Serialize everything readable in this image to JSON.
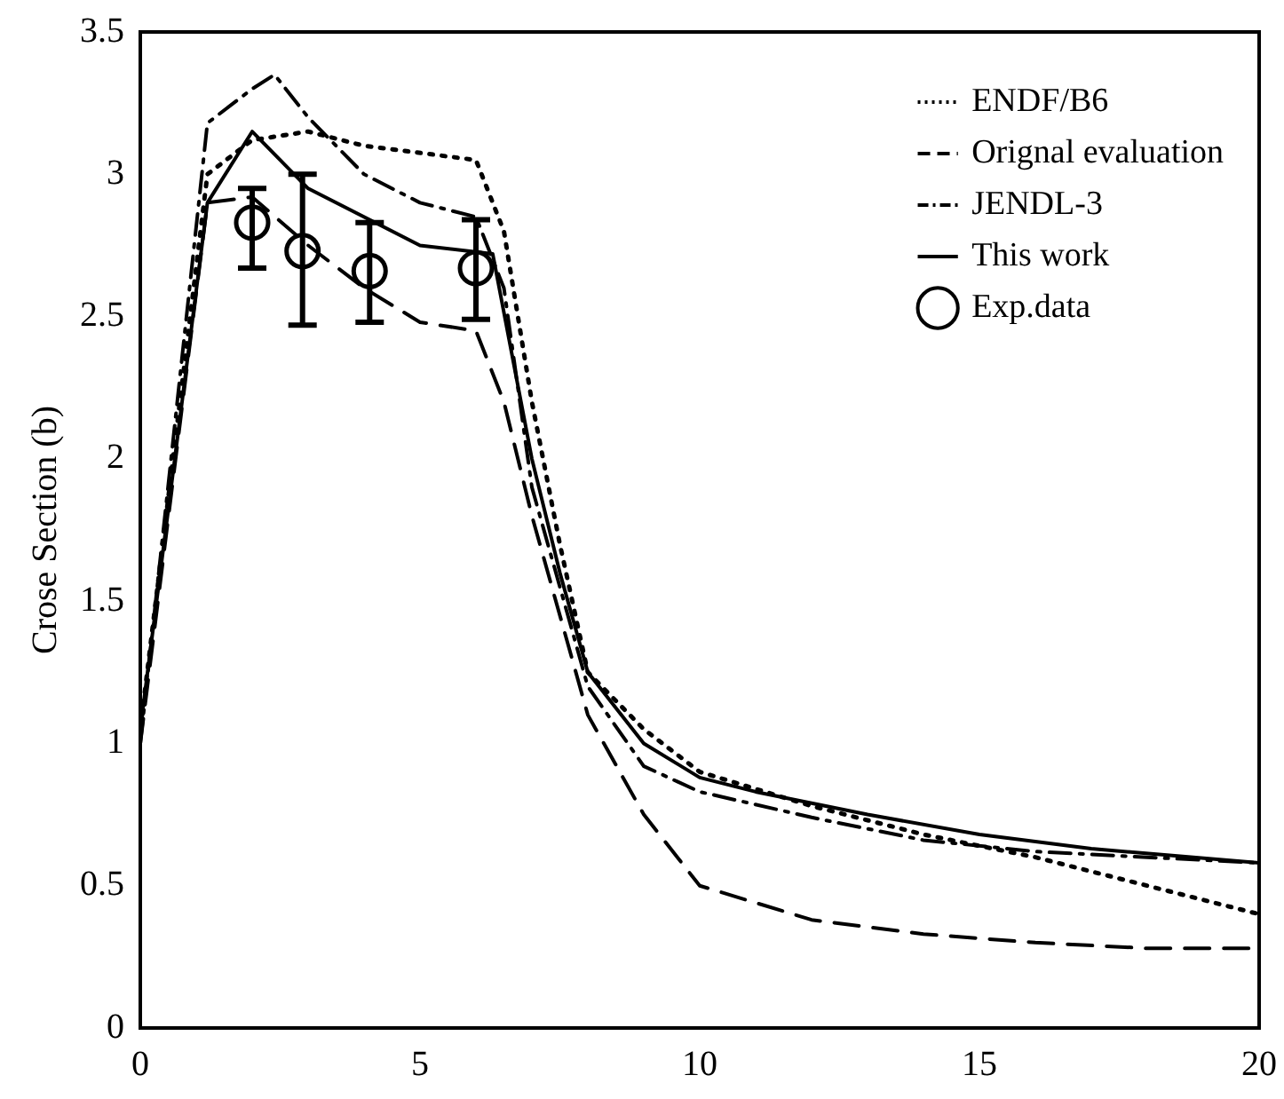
{
  "chart_data": {
    "type": "line",
    "ylabel": "Crose Section (b)",
    "xlim": [
      0,
      20
    ],
    "xticks": [
      0,
      5,
      10,
      15,
      20
    ],
    "ylim": [
      0,
      3.5
    ],
    "yticks": [
      0,
      0.5,
      1,
      1.5,
      2,
      2.5,
      3,
      3.5
    ],
    "legend": "top right",
    "grid": false,
    "series": [
      {
        "name": "ENDF/B6",
        "color": "#000000",
        "line_style": "dotted",
        "x": [
          0,
          1.2,
          2,
          3,
          4,
          6,
          6.5,
          7,
          7.5,
          8,
          9,
          10,
          12,
          14,
          16,
          18,
          20
        ],
        "values": [
          1.05,
          3.0,
          3.12,
          3.15,
          3.1,
          3.05,
          2.8,
          2.2,
          1.7,
          1.25,
          1.05,
          0.9,
          0.78,
          0.68,
          0.6,
          0.5,
          0.4
        ]
      },
      {
        "name": "Orignal evaluation",
        "color": "#000000",
        "line_style": "dashed",
        "x": [
          0,
          1.2,
          2,
          3,
          4,
          5,
          6,
          6.5,
          7,
          8,
          9,
          10,
          12,
          14,
          16,
          18,
          20
        ],
        "values": [
          1.0,
          2.9,
          2.92,
          2.75,
          2.6,
          2.48,
          2.45,
          2.2,
          1.8,
          1.1,
          0.75,
          0.5,
          0.38,
          0.33,
          0.3,
          0.28,
          0.28
        ]
      },
      {
        "name": "JENDL-3",
        "color": "#000000",
        "line_style": "dashdot",
        "x": [
          0,
          1.2,
          2,
          2.4,
          3,
          4,
          5,
          6,
          6.5,
          7,
          8,
          9,
          10,
          12,
          14,
          16,
          18,
          20
        ],
        "values": [
          1.0,
          3.18,
          3.3,
          3.35,
          3.2,
          3.0,
          2.9,
          2.85,
          2.6,
          1.9,
          1.2,
          0.92,
          0.83,
          0.74,
          0.66,
          0.62,
          0.6,
          0.58
        ]
      },
      {
        "name": "This work",
        "color": "#000000",
        "line_style": "solid",
        "x": [
          0,
          1.2,
          2,
          3,
          5,
          6.3,
          7,
          7.5,
          8,
          9,
          10,
          11,
          13,
          15,
          17,
          20
        ],
        "values": [
          1.05,
          2.9,
          3.15,
          2.95,
          2.75,
          2.72,
          2.0,
          1.6,
          1.25,
          1.0,
          0.88,
          0.83,
          0.75,
          0.68,
          0.63,
          0.58
        ]
      },
      {
        "name": "Exp.data",
        "type": "scatter",
        "color": "#000000",
        "marker": "circle",
        "x": [
          2,
          2.9,
          4.1,
          6
        ],
        "values": [
          2.83,
          2.73,
          2.66,
          2.67
        ],
        "errors": [
          [
            2.67,
            2.95
          ],
          [
            2.47,
            3.0
          ],
          [
            2.48,
            2.83
          ],
          [
            2.49,
            2.84
          ]
        ]
      }
    ]
  }
}
